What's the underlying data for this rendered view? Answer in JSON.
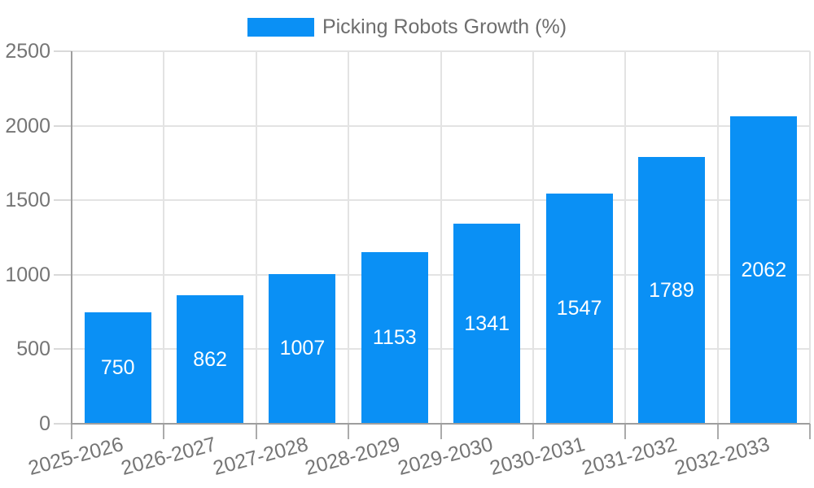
{
  "chart_data": {
    "type": "bar",
    "title": "",
    "legend": "Picking Robots Growth (%)",
    "legend_position": "top-center",
    "categories": [
      "2025-2026",
      "2026-2027",
      "2027-2028",
      "2028-2029",
      "2029-2030",
      "2030-2031",
      "2031-2032",
      "2032-2033"
    ],
    "values": [
      750,
      862,
      1007,
      1153,
      1341,
      1547,
      1789,
      2062
    ],
    "xlabel": "",
    "ylabel": "",
    "ylim": [
      0,
      2500
    ],
    "yticks": [
      0,
      500,
      1000,
      1500,
      2000,
      2500
    ],
    "grid": true,
    "bar_value_labels": "inside-center",
    "colors": {
      "bar": "#0a90f5",
      "bar_label": "#ffffff",
      "gridline": "#e3e3e3",
      "axis_line": "#9e9e9e",
      "tick_label": "#757575",
      "legend_text": "#6e6e6e",
      "background": "#ffffff"
    }
  }
}
